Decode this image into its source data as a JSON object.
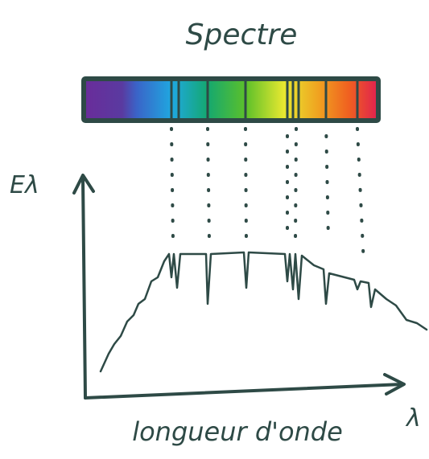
{
  "title": "Spectre",
  "y_axis_label": "Eλ",
  "x_axis_symbol": "λ",
  "x_axis_label": "longueur d'onde"
}
